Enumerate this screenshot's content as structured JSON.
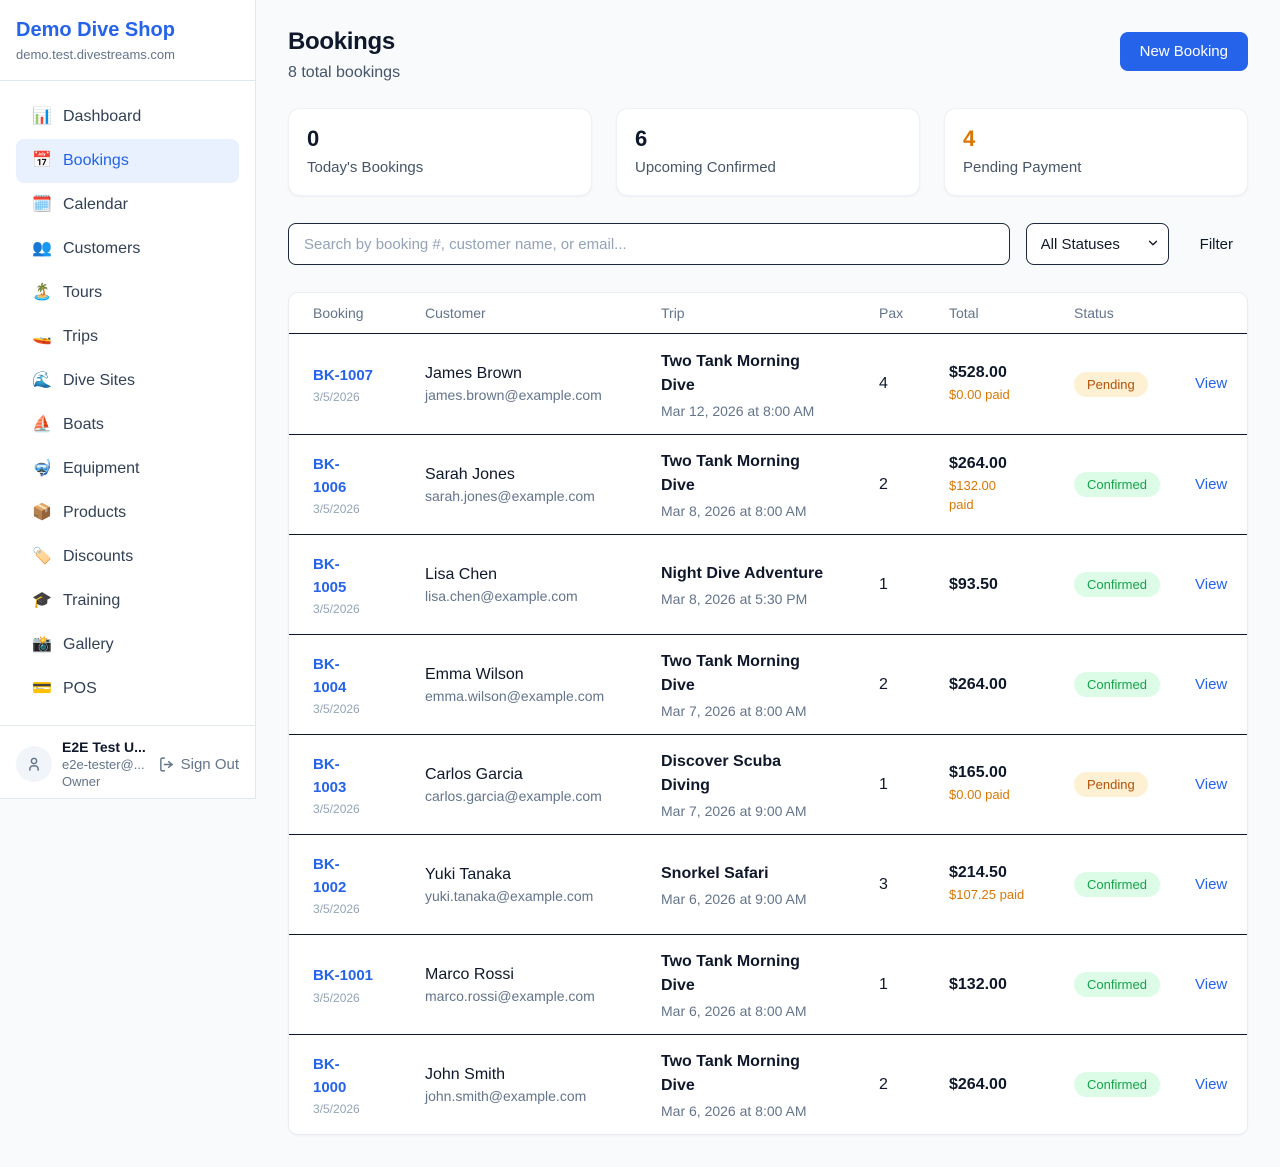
{
  "colors": {
    "accent_blue": "#2563eb",
    "pending_text": "#b45309",
    "pending_bg": "#fdf0d3",
    "confirmed_text": "#16a34a",
    "confirmed_bg": "#dcfce7",
    "paid_orange": "#d97706",
    "page_bg": "#f8fafc"
  },
  "sidebar": {
    "brand": {
      "name": "Demo Dive Shop",
      "domain": "demo.test.divestreams.com"
    },
    "items": [
      {
        "label": "Dashboard",
        "icon": "📊",
        "icon_name": "dashboard-icon",
        "active": false
      },
      {
        "label": "Bookings",
        "icon": "📅",
        "icon_name": "bookings-icon",
        "active": true
      },
      {
        "label": "Calendar",
        "icon": "🗓️",
        "icon_name": "calendar-icon",
        "active": false
      },
      {
        "label": "Customers",
        "icon": "👥",
        "icon_name": "customers-icon",
        "active": false
      },
      {
        "label": "Tours",
        "icon": "🏝️",
        "icon_name": "tours-icon",
        "active": false
      },
      {
        "label": "Trips",
        "icon": "🚤",
        "icon_name": "trips-icon",
        "active": false
      },
      {
        "label": "Dive Sites",
        "icon": "🌊",
        "icon_name": "dive-sites-icon",
        "active": false
      },
      {
        "label": "Boats",
        "icon": "⛵",
        "icon_name": "boats-icon",
        "active": false
      },
      {
        "label": "Equipment",
        "icon": "🤿",
        "icon_name": "equipment-icon",
        "active": false
      },
      {
        "label": "Products",
        "icon": "📦",
        "icon_name": "products-icon",
        "active": false
      },
      {
        "label": "Discounts",
        "icon": "🏷️",
        "icon_name": "discounts-icon",
        "active": false
      },
      {
        "label": "Training",
        "icon": "🎓",
        "icon_name": "training-icon",
        "active": false
      },
      {
        "label": "Gallery",
        "icon": "📸",
        "icon_name": "gallery-icon",
        "active": false
      },
      {
        "label": "POS",
        "icon": "💳",
        "icon_name": "pos-icon",
        "active": false
      }
    ],
    "user": {
      "name": "E2E Test U...",
      "email": "e2e-tester@...",
      "role": "Owner",
      "sign_out_label": "Sign Out"
    }
  },
  "header": {
    "title": "Bookings",
    "subtitle": "8 total bookings",
    "new_booking_label": "New Booking"
  },
  "stats": [
    {
      "value": "0",
      "label": "Today's Bookings",
      "value_color": "#0f172a"
    },
    {
      "value": "6",
      "label": "Upcoming Confirmed",
      "value_color": "#0f172a"
    },
    {
      "value": "4",
      "label": "Pending Payment",
      "value_color": "#d97706"
    }
  ],
  "toolbar": {
    "search_placeholder": "Search by booking #, customer name, or email...",
    "status_filter_value": "All Statuses",
    "filter_label": "Filter"
  },
  "table": {
    "columns": [
      "Booking",
      "Customer",
      "Trip",
      "Pax",
      "Total",
      "Status"
    ],
    "rows": [
      {
        "id": "BK-1007",
        "id_wrap": false,
        "date": "3/5/2026",
        "customer": "James Brown",
        "email": "james.brown@example.com",
        "trip": "Two Tank Morning Dive",
        "trip_wrap": true,
        "trip_datetime": "Mar 12, 2026 at 8:00 AM",
        "pax": "4",
        "total": "$528.00",
        "paid": "$0.00 paid",
        "paid_wrap": false,
        "status": "Pending",
        "action": "View"
      },
      {
        "id": "BK-1006",
        "id_wrap": true,
        "date": "3/5/2026",
        "customer": "Sarah Jones",
        "email": "sarah.jones@example.com",
        "trip": "Two Tank Morning Dive",
        "trip_wrap": true,
        "trip_datetime": "Mar 8, 2026 at 8:00 AM",
        "pax": "2",
        "total": "$264.00",
        "paid": "$132.00 paid",
        "paid_wrap": true,
        "status": "Confirmed",
        "action": "View"
      },
      {
        "id": "BK-1005",
        "id_wrap": true,
        "date": "3/5/2026",
        "customer": "Lisa Chen",
        "email": "lisa.chen@example.com",
        "trip": "Night Dive Adventure",
        "trip_wrap": false,
        "trip_datetime": "Mar 8, 2026 at 5:30 PM",
        "pax": "1",
        "total": "$93.50",
        "paid": "",
        "paid_wrap": false,
        "status": "Confirmed",
        "action": "View"
      },
      {
        "id": "BK-1004",
        "id_wrap": true,
        "date": "3/5/2026",
        "customer": "Emma Wilson",
        "email": "emma.wilson@example.com",
        "trip": "Two Tank Morning Dive",
        "trip_wrap": true,
        "trip_datetime": "Mar 7, 2026 at 8:00 AM",
        "pax": "2",
        "total": "$264.00",
        "paid": "",
        "paid_wrap": false,
        "status": "Confirmed",
        "action": "View"
      },
      {
        "id": "BK-1003",
        "id_wrap": true,
        "date": "3/5/2026",
        "customer": "Carlos Garcia",
        "email": "carlos.garcia@example.com",
        "trip": "Discover Scuba Diving",
        "trip_wrap": true,
        "trip_datetime": "Mar 7, 2026 at 9:00 AM",
        "pax": "1",
        "total": "$165.00",
        "paid": "$0.00 paid",
        "paid_wrap": false,
        "status": "Pending",
        "action": "View"
      },
      {
        "id": "BK-1002",
        "id_wrap": true,
        "date": "3/5/2026",
        "customer": "Yuki Tanaka",
        "email": "yuki.tanaka@example.com",
        "trip": "Snorkel Safari",
        "trip_wrap": false,
        "trip_datetime": "Mar 6, 2026 at 9:00 AM",
        "pax": "3",
        "total": "$214.50",
        "paid": "$107.25 paid",
        "paid_wrap": false,
        "status": "Confirmed",
        "action": "View"
      },
      {
        "id": "BK-1001",
        "id_wrap": false,
        "date": "3/5/2026",
        "customer": "Marco Rossi",
        "email": "marco.rossi@example.com",
        "trip": "Two Tank Morning Dive",
        "trip_wrap": true,
        "trip_datetime": "Mar 6, 2026 at 8:00 AM",
        "pax": "1",
        "total": "$132.00",
        "paid": "",
        "paid_wrap": false,
        "status": "Confirmed",
        "action": "View"
      },
      {
        "id": "BK-1000",
        "id_wrap": true,
        "date": "3/5/2026",
        "customer": "John Smith",
        "email": "john.smith@example.com",
        "trip": "Two Tank Morning Dive",
        "trip_wrap": true,
        "trip_datetime": "Mar 6, 2026 at 8:00 AM",
        "pax": "2",
        "total": "$264.00",
        "paid": "",
        "paid_wrap": false,
        "status": "Confirmed",
        "action": "View"
      }
    ]
  }
}
